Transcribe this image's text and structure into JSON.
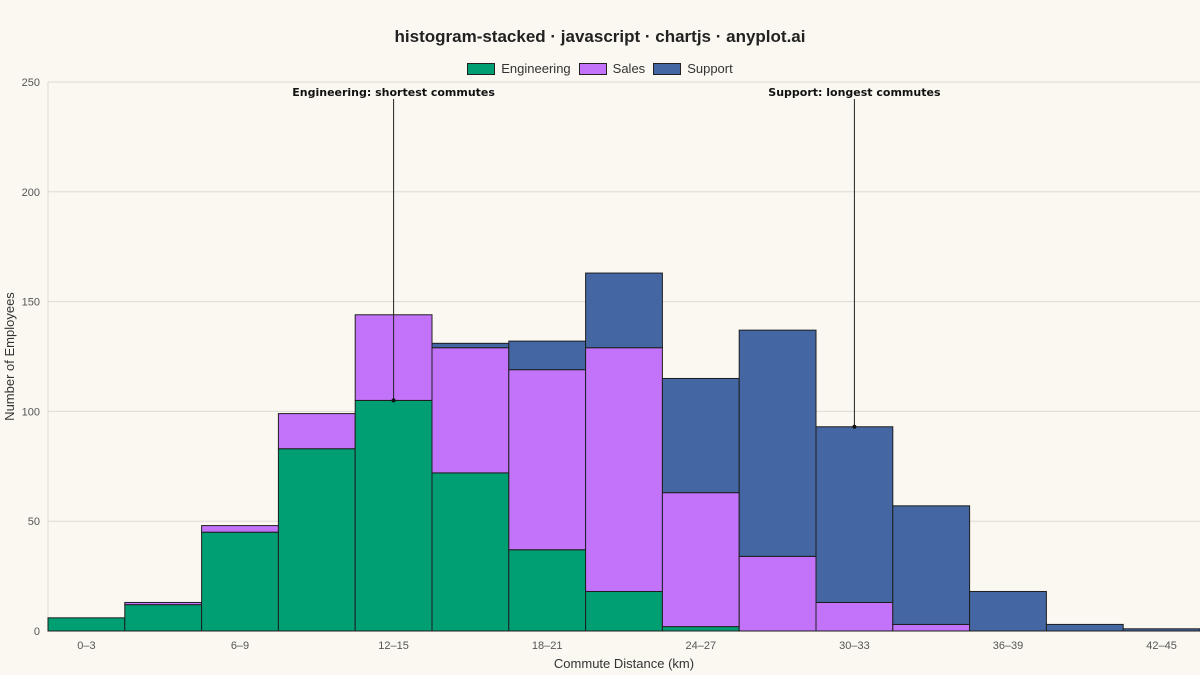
{
  "chart_data": {
    "type": "bar",
    "stacked": true,
    "title": "histogram-stacked · javascript · chartjs · anyplot.ai",
    "xlabel": "Commute Distance (km)",
    "ylabel": "Number of Employees",
    "ylim": [
      0,
      250
    ],
    "yticks": [
      0,
      50,
      100,
      150,
      200,
      250
    ],
    "grid": true,
    "legend_position": "top",
    "categories": [
      "0–3",
      "3–6",
      "6–9",
      "9–12",
      "12–15",
      "15–18",
      "18–21",
      "21–24",
      "24–27",
      "27–30",
      "30–33",
      "33–36",
      "36–39",
      "39–42",
      "42–45"
    ],
    "xticks_shown": [
      "0–3",
      "6–9",
      "12–15",
      "18–21",
      "24–27",
      "30–33",
      "36–39",
      "42–45"
    ],
    "series": [
      {
        "name": "Engineering",
        "color": "#009E73",
        "values": [
          6,
          12,
          45,
          83,
          105,
          72,
          37,
          18,
          2,
          0,
          0,
          0,
          0,
          0,
          0
        ]
      },
      {
        "name": "Sales",
        "color": "#C373FA",
        "values": [
          0,
          1,
          3,
          16,
          39,
          57,
          82,
          111,
          61,
          34,
          13,
          3,
          0,
          0,
          0
        ]
      },
      {
        "name": "Support",
        "color": "#4467A3",
        "values": [
          0,
          0,
          0,
          0,
          0,
          2,
          13,
          34,
          52,
          103,
          80,
          54,
          18,
          3,
          1
        ]
      }
    ],
    "annotations": [
      {
        "text": "Engineering: shortest commutes",
        "category": "12–15",
        "value": 105
      },
      {
        "text": "Support: longest commutes",
        "category": "30–33",
        "value": 93
      }
    ]
  }
}
